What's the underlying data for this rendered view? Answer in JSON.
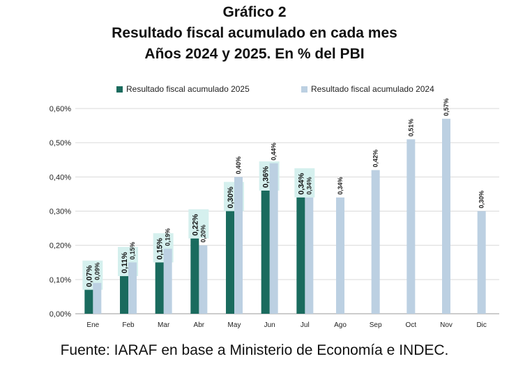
{
  "title_lines": [
    "Gráfico 2",
    "Resultado fiscal acumulado en cada mes",
    "Años 2024 y 2025. En % del PBI"
  ],
  "source": "Fuente: IARAF en base a Ministerio de Economía e INDEC.",
  "colors": {
    "series_2025": "#1a6b5e",
    "series_2024": "#bcd0e2",
    "label_bg_2025": "#d5f0ee",
    "grid": "#d9d9d9"
  },
  "chart_data": {
    "type": "bar",
    "categories": [
      "Ene",
      "Feb",
      "Mar",
      "Abr",
      "May",
      "Jun",
      "Jul",
      "Ago",
      "Sep",
      "Oct",
      "Nov",
      "Dic"
    ],
    "series": [
      {
        "name": "Resultado fiscal acumulado 2025",
        "values": [
          0.07,
          0.11,
          0.15,
          0.22,
          0.3,
          0.36,
          0.34,
          null,
          null,
          null,
          null,
          null
        ],
        "labels": [
          "0,07%",
          "0,11%",
          "0,15%",
          "0,22%",
          "0,30%",
          "0,36%",
          "0,34%",
          "",
          "",
          "",
          "",
          ""
        ]
      },
      {
        "name": "Resultado fiscal acumulado 2024",
        "values": [
          0.09,
          0.15,
          0.19,
          0.2,
          0.4,
          0.44,
          0.34,
          0.34,
          0.42,
          0.51,
          0.57,
          0.3
        ],
        "labels": [
          "0,09%",
          "0,15%",
          "0,19%",
          "0,20%",
          "0,40%",
          "0,44%",
          "0,34%",
          "0,34%",
          "0,42%",
          "0,51%",
          "0,57%",
          "0,30%"
        ]
      }
    ],
    "yticks": [
      0.0,
      0.1,
      0.2,
      0.3,
      0.4,
      0.5,
      0.6
    ],
    "ytick_labels": [
      "0,00%",
      "0,10%",
      "0,20%",
      "0,30%",
      "0,40%",
      "0,50%",
      "0,60%"
    ],
    "ylim": [
      0,
      0.6
    ],
    "grid": true,
    "legend_position": "top"
  }
}
